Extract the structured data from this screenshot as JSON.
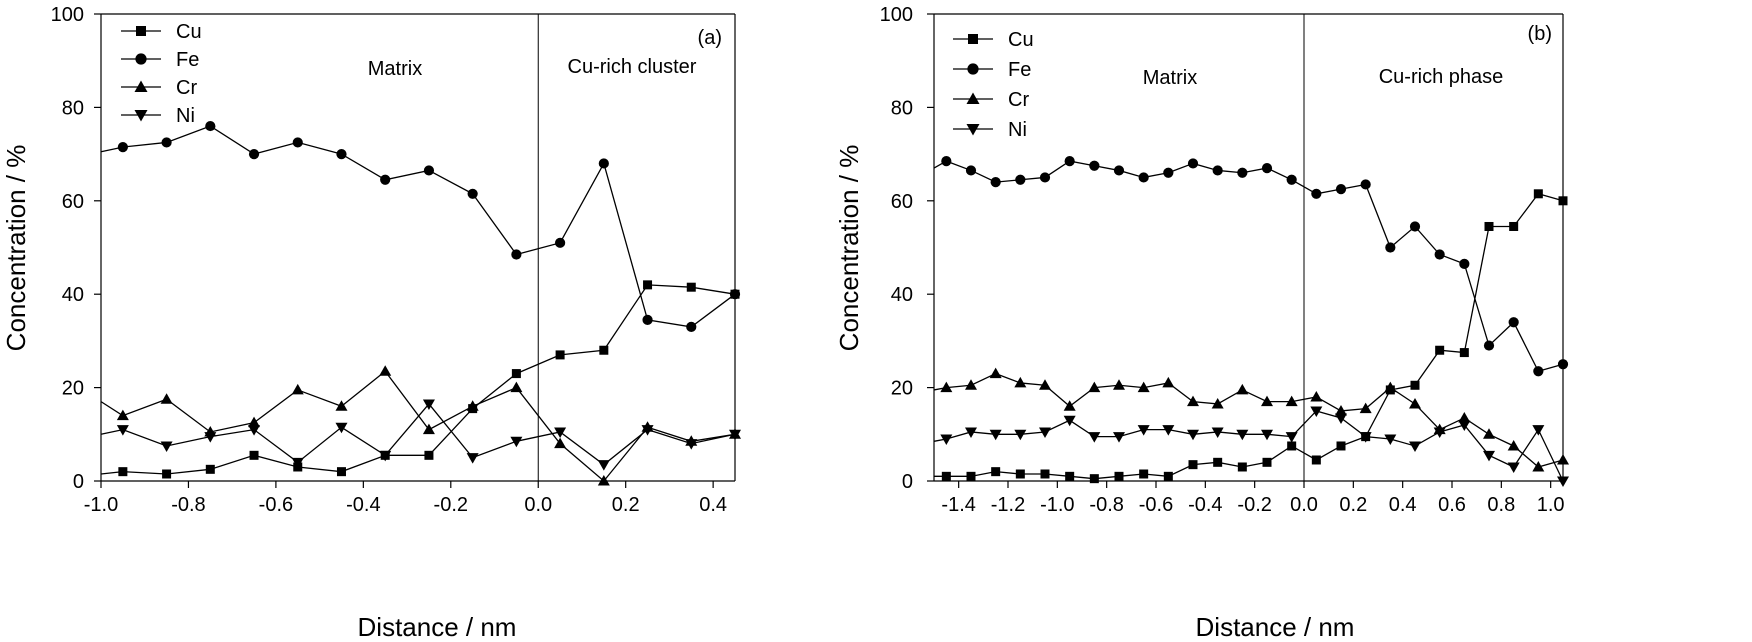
{
  "chart_data": [
    {
      "type": "line",
      "panel_label": "(a)",
      "xlabel": "Distance / nm",
      "ylabel": "Concentration / %",
      "xlim": [
        -1.0,
        0.45
      ],
      "ylim": [
        0,
        100
      ],
      "xticks": [
        -1.0,
        -0.8,
        -0.6,
        -0.4,
        -0.2,
        0.0,
        0.2,
        0.4
      ],
      "xtick_labels": [
        "-1.0",
        "-0.8",
        "-0.6",
        "-0.4",
        "-0.2",
        "0.0",
        "0.2",
        "0.4"
      ],
      "yticks": [
        0,
        20,
        40,
        60,
        80,
        100
      ],
      "ytick_labels": [
        "0",
        "20",
        "40",
        "60",
        "80",
        "100"
      ],
      "divider_x": 0.0,
      "region_labels": [
        "Matrix",
        "Cu-rich cluster"
      ],
      "legend_position": "top-left",
      "grid": false,
      "x": [
        -0.95,
        -0.85,
        -0.75,
        -0.65,
        -0.55,
        -0.45,
        -0.35,
        -0.25,
        -0.15,
        -0.05,
        0.05,
        0.15,
        0.25,
        0.35,
        0.45
      ],
      "series": [
        {
          "name": "Cu",
          "marker": "square",
          "start": 1.5,
          "values": [
            2,
            1.5,
            2.5,
            5.5,
            3,
            2,
            5.5,
            5.5,
            15.5,
            23,
            27,
            28,
            42,
            41.5,
            40
          ]
        },
        {
          "name": "Fe",
          "marker": "circle",
          "start": 70.5,
          "values": [
            71.5,
            72.5,
            76,
            70,
            72.5,
            70,
            64.5,
            66.5,
            61.5,
            48.5,
            51,
            68,
            34.5,
            33,
            40
          ]
        },
        {
          "name": "Cr",
          "marker": "triangle-up",
          "start": 17,
          "values": [
            14,
            17.5,
            10.5,
            12.5,
            19.5,
            16,
            23.5,
            11,
            16,
            20,
            8,
            0,
            11.5,
            8.5,
            10
          ]
        },
        {
          "name": "Ni",
          "marker": "triangle-down",
          "start": 10,
          "values": [
            11,
            7.5,
            9.5,
            11,
            4,
            11.5,
            5.5,
            16.5,
            5,
            8.5,
            10.5,
            3.5,
            11,
            8,
            10
          ]
        }
      ]
    },
    {
      "type": "line",
      "panel_label": "(b)",
      "xlabel": "Distance / nm",
      "ylabel": "Concentration / %",
      "xlim": [
        -1.5,
        1.05
      ],
      "ylim": [
        0,
        100
      ],
      "xticks": [
        -1.4,
        -1.2,
        -1.0,
        -0.8,
        -0.6,
        -0.4,
        -0.2,
        0.0,
        0.2,
        0.4,
        0.6,
        0.8,
        1.0
      ],
      "xtick_labels": [
        "-1.4",
        "-1.2",
        "-1.0",
        "-0.8",
        "-0.6",
        "-0.4",
        "-0.2",
        "0.0",
        "0.2",
        "0.4",
        "0.6",
        "0.8",
        "1.0"
      ],
      "yticks": [
        0,
        20,
        40,
        60,
        80,
        100
      ],
      "ytick_labels": [
        "0",
        "20",
        "40",
        "60",
        "80",
        "100"
      ],
      "divider_x": 0.0,
      "region_labels": [
        "Matrix",
        "Cu-rich phase"
      ],
      "legend_position": "top-left",
      "grid": false,
      "x": [
        -1.45,
        -1.35,
        -1.25,
        -1.15,
        -1.05,
        -0.95,
        -0.85,
        -0.75,
        -0.65,
        -0.55,
        -0.45,
        -0.35,
        -0.25,
        -0.15,
        -0.05,
        0.05,
        0.15,
        0.25,
        0.35,
        0.45,
        0.55,
        0.65,
        0.75,
        0.85,
        0.95,
        1.05
      ],
      "series": [
        {
          "name": "Cu",
          "marker": "square",
          "start": 1,
          "values": [
            1,
            1,
            2,
            1.5,
            1.5,
            1,
            0.5,
            1,
            1.5,
            1,
            3.5,
            4,
            3,
            4,
            7.5,
            4.5,
            7.5,
            9.5,
            19.5,
            20.5,
            28,
            27.5,
            54.5,
            54.5,
            61.5,
            60
          ]
        },
        {
          "name": "Fe",
          "marker": "circle",
          "start": 67,
          "values": [
            68.5,
            66.5,
            64,
            64.5,
            65,
            68.5,
            67.5,
            66.5,
            65,
            66,
            68,
            66.5,
            66,
            67,
            64.5,
            61.5,
            62.5,
            63.5,
            50,
            54.5,
            48.5,
            46.5,
            29,
            34,
            23.5,
            25
          ]
        },
        {
          "name": "Cr",
          "marker": "triangle-up",
          "start": 19.5,
          "values": [
            20,
            20.5,
            23,
            21,
            20.5,
            16,
            20,
            20.5,
            20,
            21,
            17,
            16.5,
            19.5,
            17,
            17,
            18,
            15,
            15.5,
            20,
            16.5,
            11,
            13.5,
            10,
            7.5,
            3,
            4.5
          ]
        },
        {
          "name": "Ni",
          "marker": "triangle-down",
          "start": 8.5,
          "values": [
            9,
            10.5,
            10,
            10,
            10.5,
            13,
            9.5,
            9.5,
            11,
            11,
            10,
            10.5,
            10,
            10,
            9.5,
            15,
            13.5,
            9.5,
            9,
            7.5,
            10.5,
            12,
            5.5,
            3,
            11,
            0
          ]
        }
      ]
    }
  ]
}
